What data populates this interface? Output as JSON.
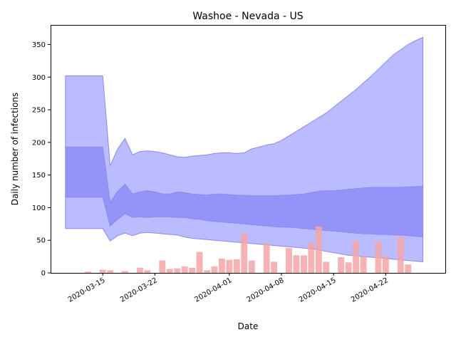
{
  "chart_data": {
    "type": "area",
    "title": "Washoe - Nevada - US",
    "xlabel": "Date",
    "ylabel": "Daily number of infections",
    "ylim": [
      0,
      380
    ],
    "yticks": [
      0,
      50,
      100,
      150,
      200,
      250,
      300,
      350
    ],
    "xlim": [
      "2020-03-08",
      "2020-04-30"
    ],
    "xticks": [
      "2020-03-15",
      "2020-03-22",
      "2020-04-01",
      "2020-04-08",
      "2020-04-15",
      "2020-04-22"
    ],
    "grid": false,
    "colors": {
      "outer_band": "#bbbbff",
      "inner_band": "#8c8cf7",
      "band_edge": "#8a8af0",
      "bars": "#f4a6a6",
      "bars_dark": "#d9647c"
    },
    "band_x": [
      "2020-03-10",
      "2020-03-15",
      "2020-03-16",
      "2020-03-17",
      "2020-03-18",
      "2020-03-19",
      "2020-03-20",
      "2020-03-21",
      "2020-03-22",
      "2020-03-23",
      "2020-03-24",
      "2020-03-25",
      "2020-03-26",
      "2020-03-27",
      "2020-03-28",
      "2020-03-29",
      "2020-03-30",
      "2020-03-31",
      "2020-04-01",
      "2020-04-02",
      "2020-04-03",
      "2020-04-04",
      "2020-04-05",
      "2020-04-06",
      "2020-04-07",
      "2020-04-08",
      "2020-04-09",
      "2020-04-10",
      "2020-04-11",
      "2020-04-12",
      "2020-04-13",
      "2020-04-14",
      "2020-04-15",
      "2020-04-16",
      "2020-04-17",
      "2020-04-18",
      "2020-04-19",
      "2020-04-20",
      "2020-04-21",
      "2020-04-22",
      "2020-04-23",
      "2020-04-24",
      "2020-04-25",
      "2020-04-26",
      "2020-04-27"
    ],
    "series": [
      {
        "role": "outer_upper",
        "values": [
          302,
          302,
          164,
          190,
          206,
          181,
          186,
          187,
          186,
          184,
          181,
          178,
          177,
          179,
          180,
          181,
          183,
          184,
          184,
          183,
          184,
          190,
          193,
          196,
          198,
          203,
          210,
          217,
          224,
          231,
          238,
          245,
          254,
          263,
          272,
          281,
          291,
          301,
          312,
          323,
          334,
          342,
          350,
          356,
          361
        ]
      },
      {
        "role": "inner_upper",
        "values": [
          193,
          193,
          108,
          125,
          136,
          121,
          124,
          126,
          124,
          121,
          121,
          124,
          123,
          121,
          120,
          119,
          121,
          121,
          120,
          119,
          119,
          118,
          118,
          118,
          118,
          119,
          119,
          120,
          121,
          123,
          125,
          126,
          126,
          127,
          128,
          129,
          130,
          131,
          131,
          131,
          131,
          131,
          132,
          132,
          133
        ]
      },
      {
        "role": "inner_lower",
        "values": [
          116,
          116,
          72,
          82,
          91,
          85,
          86,
          85,
          86,
          86,
          86,
          85,
          85,
          83,
          82,
          80,
          79,
          78,
          77,
          76,
          75,
          74,
          73,
          72,
          71,
          70,
          70,
          69,
          68,
          67,
          66,
          65,
          64,
          63,
          62,
          61,
          60,
          60,
          59,
          59,
          58,
          58,
          57,
          56,
          55
        ]
      },
      {
        "role": "outer_lower",
        "values": [
          68,
          68,
          49,
          57,
          61,
          57,
          61,
          62,
          61,
          60,
          59,
          58,
          55,
          53,
          52,
          51,
          50,
          49,
          48,
          47,
          46,
          45,
          44,
          43,
          42,
          41,
          40,
          39,
          38,
          37,
          35,
          33,
          31,
          29,
          27,
          26,
          25,
          24,
          23,
          22,
          21,
          20,
          19,
          18,
          17
        ]
      }
    ],
    "bars": {
      "x": [
        "2020-03-13",
        "2020-03-15",
        "2020-03-16",
        "2020-03-18",
        "2020-03-20",
        "2020-03-21",
        "2020-03-23",
        "2020-03-24",
        "2020-03-25",
        "2020-03-26",
        "2020-03-27",
        "2020-03-28",
        "2020-03-29",
        "2020-03-30",
        "2020-03-31",
        "2020-04-01",
        "2020-04-02",
        "2020-04-03",
        "2020-04-04",
        "2020-04-06",
        "2020-04-07",
        "2020-04-09",
        "2020-04-10",
        "2020-04-11",
        "2020-04-12",
        "2020-04-13",
        "2020-04-14",
        "2020-04-16",
        "2020-04-17",
        "2020-04-18",
        "2020-04-19",
        "2020-04-21",
        "2020-04-22",
        "2020-04-24",
        "2020-04-25"
      ],
      "values": [
        2,
        5,
        4,
        3,
        8,
        4,
        19,
        6,
        7,
        10,
        8,
        32,
        4,
        10,
        22,
        20,
        21,
        61,
        19,
        45,
        17,
        38,
        27,
        27,
        46,
        71,
        17,
        24,
        16,
        49,
        25,
        48,
        26,
        55,
        13
      ]
    }
  }
}
